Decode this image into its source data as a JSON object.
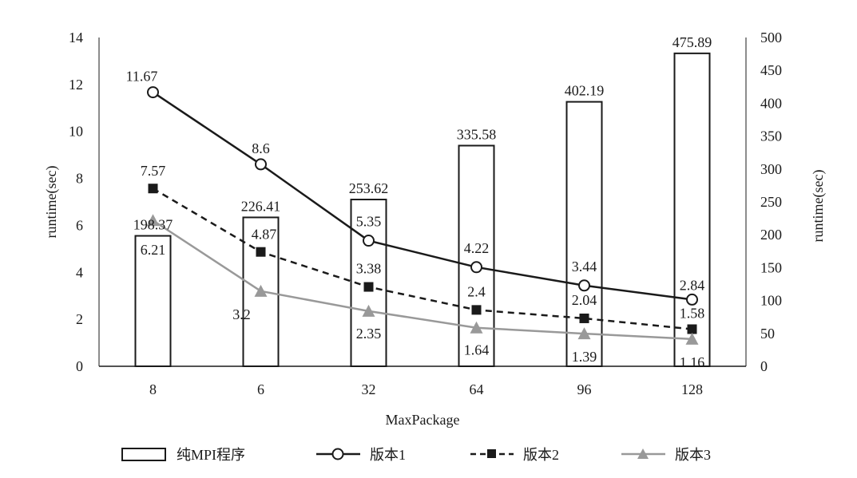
{
  "chart_data": {
    "type": "bar+line",
    "categories": [
      "8",
      "6",
      "32",
      "64",
      "96",
      "128"
    ],
    "xlabel": "MaxPackage",
    "ylabel_left": "runtime(sec)",
    "ylabel_right": "runtime(sec)",
    "ylim_left": [
      0,
      14
    ],
    "ylim_right": [
      0,
      500
    ],
    "yticks_left": [
      "0",
      "2",
      "4",
      "6",
      "8",
      "10",
      "12",
      "14"
    ],
    "yticks_right": [
      "0",
      "50",
      "100",
      "150",
      "200",
      "250",
      "300",
      "350",
      "400",
      "450",
      "500"
    ],
    "grid": false,
    "legend_position": "bottom",
    "bars": {
      "name": "纯MPI程序",
      "axis": "right",
      "values": [
        198.37,
        226.41,
        253.62,
        335.58,
        402.19,
        475.89
      ],
      "labels": [
        "198.37",
        "226.41",
        "253.62",
        "335.58",
        "402.19",
        "475.89"
      ]
    },
    "series": [
      {
        "name": "版本1",
        "axis": "left",
        "marker": "open-circle",
        "line_style": "solid",
        "color": "#1a1a1a",
        "values": [
          11.67,
          8.6,
          5.35,
          4.22,
          3.44,
          2.84
        ],
        "labels": [
          "11.67",
          "8.6",
          "5.35",
          "4.22",
          "3.44",
          "2.84"
        ]
      },
      {
        "name": "版本2",
        "axis": "left",
        "marker": "filled-square",
        "line_style": "dashed",
        "color": "#1a1a1a",
        "values": [
          7.57,
          4.87,
          3.38,
          2.4,
          2.04,
          1.58
        ],
        "labels": [
          "7.57",
          "4.87",
          "3.38",
          "2.4",
          "2.04",
          "1.58"
        ]
      },
      {
        "name": "版本3",
        "axis": "left",
        "marker": "filled-triangle",
        "line_style": "solid",
        "color": "#999999",
        "values": [
          6.21,
          3.2,
          2.35,
          1.64,
          1.39,
          1.16
        ],
        "labels": [
          "6.21",
          "3.2",
          "2.35",
          "1.64",
          "1.39",
          "1.16"
        ]
      }
    ]
  }
}
